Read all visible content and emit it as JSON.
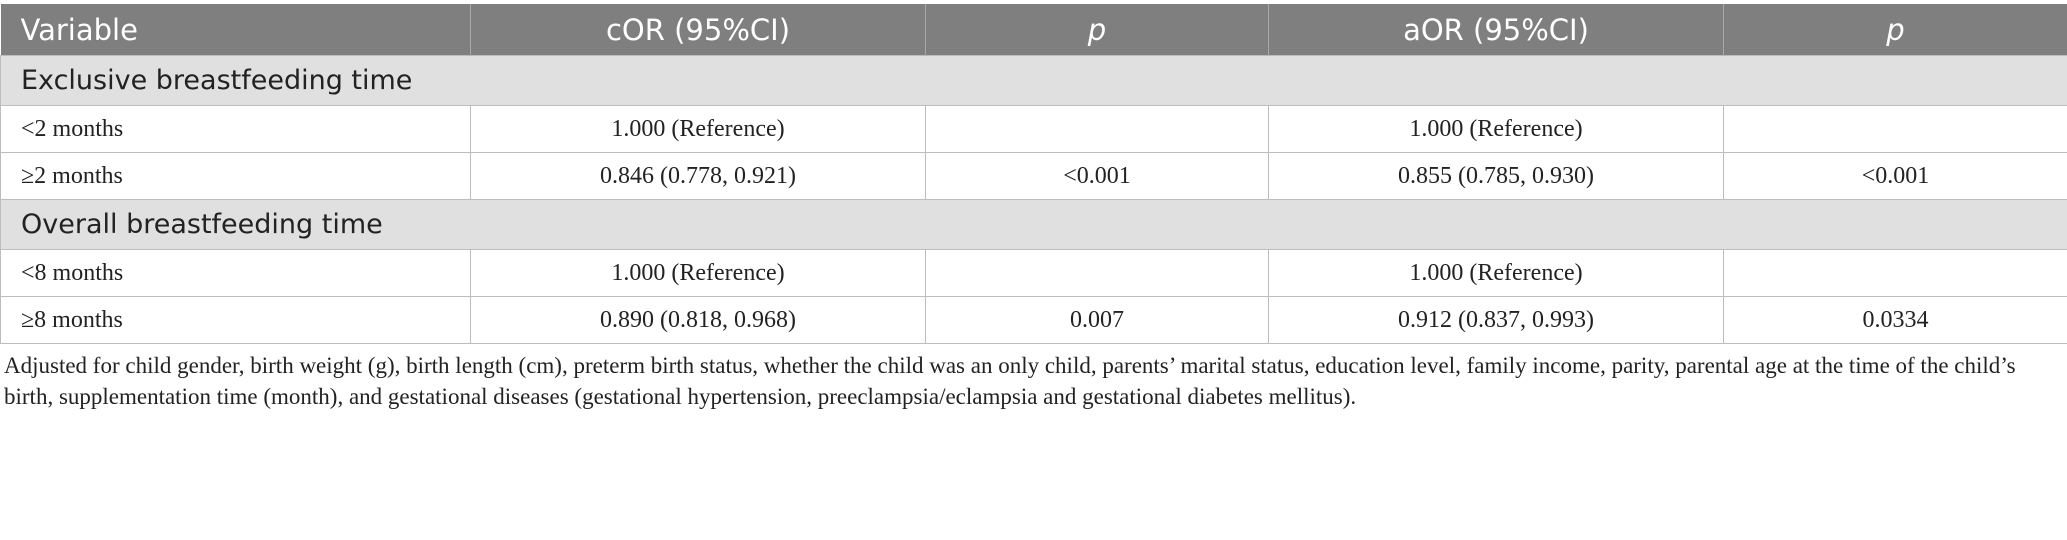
{
  "table": {
    "header": [
      "Variable",
      "cOR (95%CI)",
      "p",
      "aOR (95%CI)",
      "p"
    ],
    "sections": [
      {
        "title": "Exclusive breastfeeding time",
        "rows": [
          {
            "variable": "<2 months",
            "cor": "1.000 (Reference)",
            "aor": "1.000 (Reference)"
          },
          {
            "variable": "≥2 months",
            "cor": "0.846 (0.778, 0.921)",
            "cor_p": "<0.001",
            "aor": "0.855 (0.785, 0.930)",
            "aor_p": "<0.001"
          }
        ]
      },
      {
        "title": "Overall breastfeeding time",
        "rows": [
          {
            "variable": "<8 months",
            "cor": "1.000 (Reference)",
            "aor": "1.000 (Reference)"
          },
          {
            "variable": "≥8 months",
            "cor": "0.890 (0.818, 0.968)",
            "cor_p": "0.007",
            "aor": "0.912 (0.837, 0.993)",
            "aor_p": "0.0334"
          }
        ]
      }
    ],
    "footnote": "Adjusted for child gender, birth weight (g), birth length (cm), preterm birth status, whether the child was an only child, parents’ marital status, education level, family income, parity, parental age at the time of the child’s birth, supplementation time (month), and gestational diseases (gestational hypertension, preeclampsia/eclampsia and gestational diabetes mellitus)."
  }
}
